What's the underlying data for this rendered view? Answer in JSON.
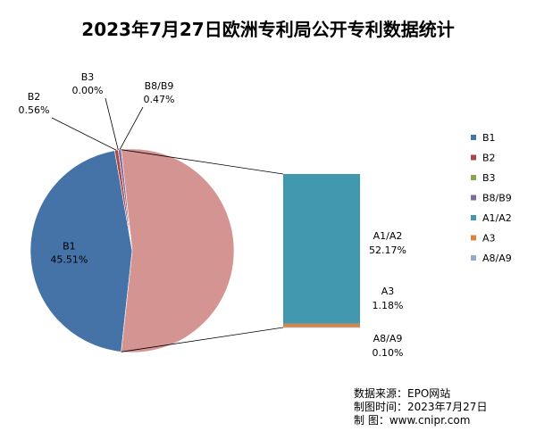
{
  "chart_data": {
    "type": "bar-of-pie",
    "title": "2023年7月27日欧洲专利局公开专利数据统计",
    "pie": [
      {
        "name": "B1",
        "value": 45.51,
        "label": "45.51%",
        "color": "#4572A7"
      },
      {
        "name": "B2",
        "value": 0.56,
        "label": "0.56%",
        "color": "#AA4643"
      },
      {
        "name": "B3",
        "value": 0.0,
        "label": "0.00%",
        "color": "#89A54E"
      },
      {
        "name": "B8/B9",
        "value": 0.47,
        "label": "0.47%",
        "color": "#80699B"
      }
    ],
    "other_slice": {
      "value": 53.45,
      "color": "#D49491"
    },
    "bar": [
      {
        "name": "A1/A2",
        "value": 52.17,
        "label": "52.17%",
        "color": "#4198AF"
      },
      {
        "name": "A3",
        "value": 1.18,
        "label": "1.18%",
        "color": "#DB843D"
      },
      {
        "name": "A8/A9",
        "value": 0.1,
        "label": "0.10%",
        "color": "#93A9CF"
      }
    ],
    "legend": [
      "B1",
      "B2",
      "B3",
      "B8/B9",
      "A1/A2",
      "A3",
      "A8/A9"
    ],
    "legend_colors": [
      "#4572A7",
      "#AA4643",
      "#89A54E",
      "#80699B",
      "#4198AF",
      "#DB843D",
      "#93A9CF"
    ],
    "legend_position": "right"
  },
  "source": {
    "line1": "数据来源：EPO网站",
    "line2": "制图时间：2023年7月27日",
    "line3": "制      图：www.cnipr.com"
  }
}
